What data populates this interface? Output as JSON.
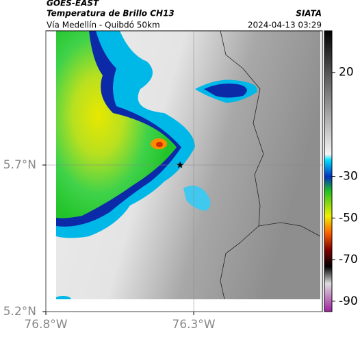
{
  "header": {
    "source": "GOES-EAST",
    "title": "Temperatura de Brillo CH13",
    "brand": "SIATA",
    "subtitle": "Vía Medellín - Quibdó 50km",
    "datetime": "2024-04-13 03:29"
  },
  "map": {
    "xlim": [
      -76.8,
      -75.865
    ],
    "ylim": [
      5.2,
      6.158
    ],
    "xticks": [
      {
        "value": -76.8,
        "label": "76.8°W"
      },
      {
        "value": -76.3,
        "label": "76.3°W"
      }
    ],
    "yticks": [
      {
        "value": 5.2,
        "label": "5.2°N"
      },
      {
        "value": 5.7,
        "label": "5.7°N"
      }
    ],
    "marker": {
      "lon": -76.346,
      "lat": 5.7
    }
  },
  "colorbar": {
    "lim": [
      -95,
      40
    ],
    "ticks": [
      20,
      -30,
      -50,
      -70,
      -90
    ]
  }
}
